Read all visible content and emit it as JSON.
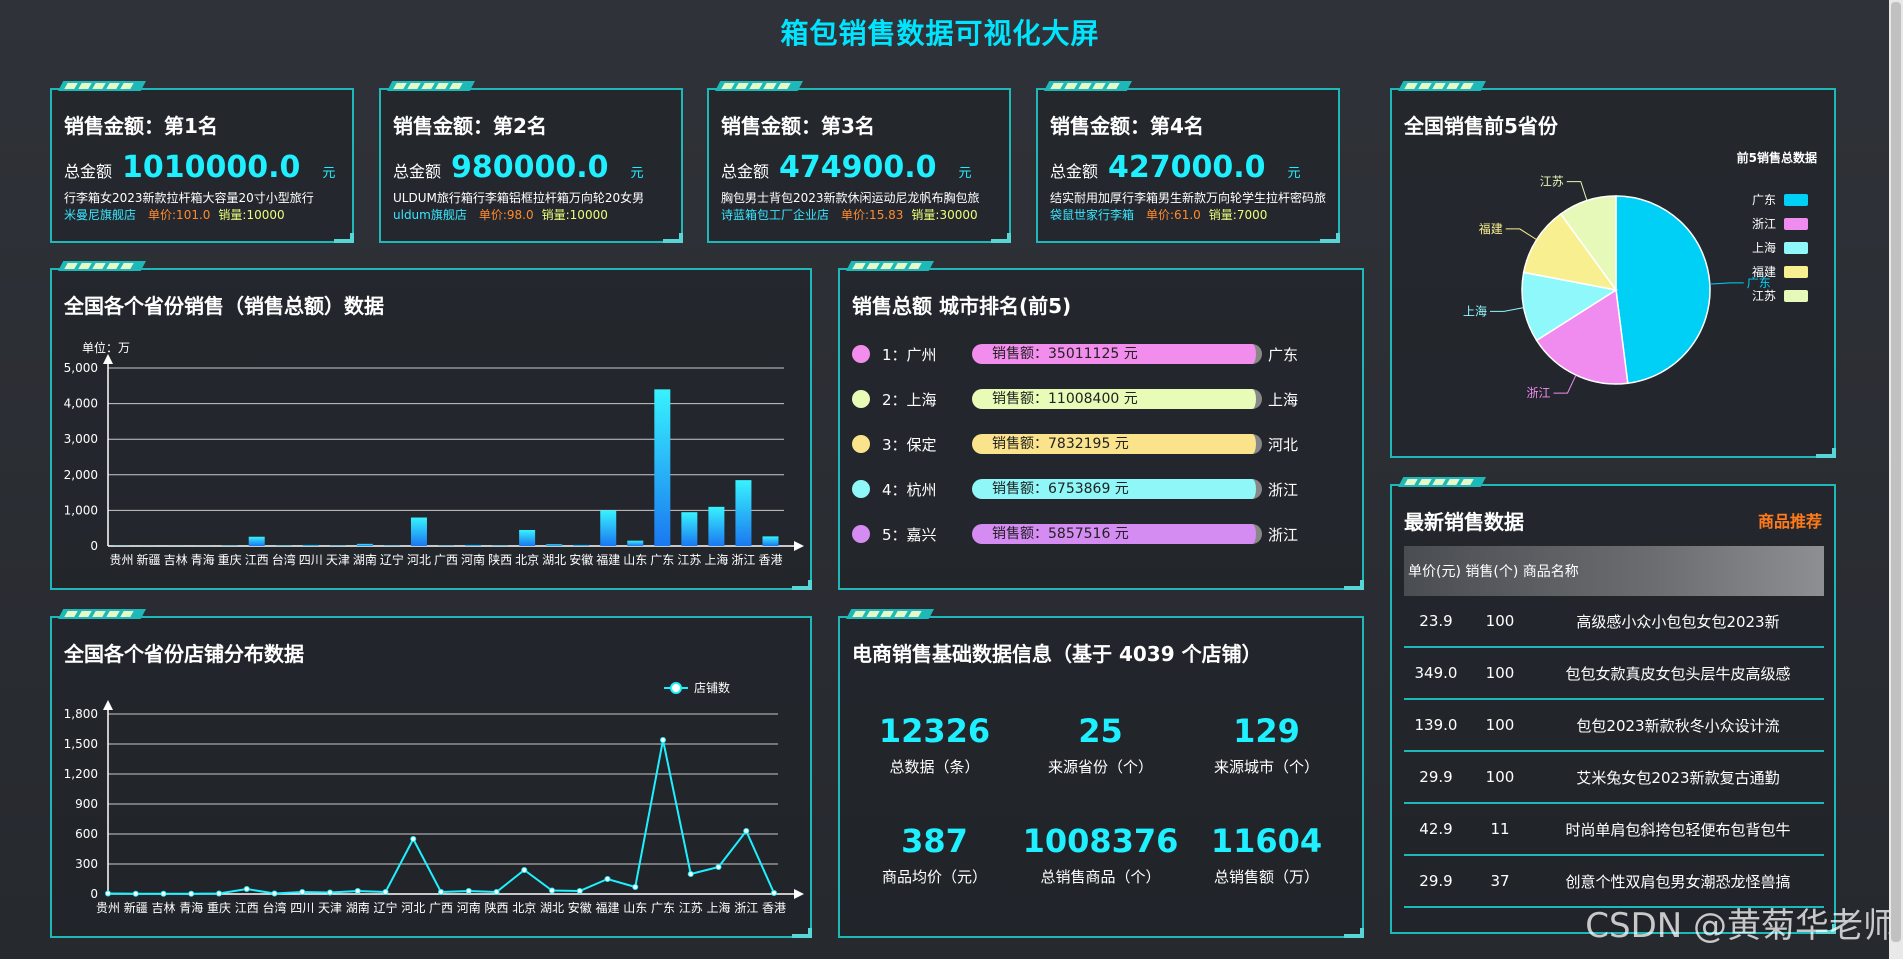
{
  "page_title": "箱包销售数据可视化大屏",
  "cards": [
    {
      "title": "销售金额：第1名",
      "amount_label": "总金额",
      "amount": "1010000.0",
      "unit": "元",
      "product": "行李箱女2023新款拉杆箱大容量20寸小型旅行",
      "shop": "米曼尼旗舰店",
      "price": "单价:101.0",
      "qty": "销量:10000"
    },
    {
      "title": "销售金额：第2名",
      "amount_label": "总金额",
      "amount": "980000.0",
      "unit": "元",
      "product": "ULDUM旅行箱行李箱铝框拉杆箱万向轮20女男",
      "shop": "uldum旗舰店",
      "price": "单价:98.0",
      "qty": "销量:10000"
    },
    {
      "title": "销售金额：第3名",
      "amount_label": "总金额",
      "amount": "474900.0",
      "unit": "元",
      "product": "胸包男士背包2023新款休闲运动尼龙帆布胸包旅",
      "shop": "诗蓝箱包工厂企业店",
      "price": "单价:15.83",
      "qty": "销量:30000"
    },
    {
      "title": "销售金额：第4名",
      "amount_label": "总金额",
      "amount": "427000.0",
      "unit": "元",
      "product": "结实耐用加厚行李箱男生新款万向轮学生拉杆密码旅",
      "shop": "袋鼠世家行李箱",
      "price": "单价:61.0",
      "qty": "销量:7000"
    }
  ],
  "pie_panel": {
    "title": "全国销售前5省份"
  },
  "province_sales_panel": {
    "title": "全国各个省份销售（销售总额）数据",
    "unit": "单位：万"
  },
  "city_rank_panel": {
    "title": "销售总额 城市排名(前5)",
    "rows": [
      {
        "rank": "1：广州",
        "bar": "销售额：35011125 元",
        "prov": "广东",
        "color": "#f28ded"
      },
      {
        "rank": "2：上海",
        "bar": "销售额：11008400 元",
        "prov": "上海",
        "color": "#e8fcb8"
      },
      {
        "rank": "3：保定",
        "bar": "销售额：7832195 元",
        "prov": "河北",
        "color": "#fbe38c"
      },
      {
        "rank": "4：杭州",
        "bar": "销售额：6753869 元",
        "prov": "浙江",
        "color": "#8ff7f7"
      },
      {
        "rank": "5：嘉兴",
        "bar": "销售额：5857516 元",
        "prov": "浙江",
        "color": "#d48bf2"
      }
    ]
  },
  "shop_dist_panel": {
    "title": "全国各个省份店铺分布数据"
  },
  "stats_panel": {
    "title": "电商销售基础数据信息（基于 4039 个店铺）",
    "items": [
      {
        "value": "12326",
        "label": "总数据（条）"
      },
      {
        "value": "25",
        "label": "来源省份（个）"
      },
      {
        "value": "129",
        "label": "来源城市（个）"
      },
      {
        "value": "387",
        "label": "商品均价（元）"
      },
      {
        "value": "1008376",
        "label": "总销售商品（个）"
      },
      {
        "value": "11604",
        "label": "总销售额（万）"
      }
    ]
  },
  "latest_panel": {
    "title": "最新销售数据",
    "recommend": "商品推荐",
    "header": "单价(元)  销售(个)  商品名称",
    "rows": [
      {
        "price": "23.9",
        "qty": "100",
        "name": "高级感小众小包包女包2023新"
      },
      {
        "price": "349.0",
        "qty": "100",
        "name": "包包女款真皮女包头层牛皮高级感"
      },
      {
        "price": "139.0",
        "qty": "100",
        "name": "包包2023新款秋冬小众设计流"
      },
      {
        "price": "29.9",
        "qty": "100",
        "name": "艾米兔女包2023新款复古通勤"
      },
      {
        "price": "42.9",
        "qty": "11",
        "name": "时尚单肩包斜挎包轻便布包背包牛"
      },
      {
        "price": "29.9",
        "qty": "37",
        "name": "创意个性双肩包男女潮恐龙怪兽搞"
      }
    ]
  },
  "watermark": "CSDN @黄菊华老师",
  "chart_data": [
    {
      "type": "pie",
      "title": "前5销售总数据",
      "categories": [
        "广东",
        "浙江",
        "上海",
        "福建",
        "江苏"
      ],
      "values": [
        48,
        18,
        12,
        12,
        10
      ],
      "colors": [
        "#00cff6",
        "#f08cf0",
        "#8ff8fb",
        "#f8ef90",
        "#e6f9b8"
      ],
      "legend": "right"
    },
    {
      "type": "bar",
      "title": "全国各个省份销售（销售总额）数据",
      "ylabel": "单位：万",
      "categories": [
        "贵州",
        "新疆",
        "吉林",
        "青海",
        "重庆",
        "江西",
        "台湾",
        "四川",
        "天津",
        "湖南",
        "辽宁",
        "河北",
        "广西",
        "河南",
        "陕西",
        "北京",
        "湖北",
        "安徽",
        "福建",
        "山东",
        "广东",
        "江苏",
        "上海",
        "浙江",
        "香港"
      ],
      "values": [
        5,
        3,
        3,
        3,
        10,
        260,
        10,
        30,
        10,
        60,
        10,
        800,
        10,
        30,
        10,
        450,
        50,
        30,
        1000,
        150,
        4400,
        950,
        1100,
        1850,
        270
      ],
      "ylim": [
        0,
        5000
      ],
      "yticks": [
        "0",
        "1,000",
        "2,000",
        "3,000",
        "4,000",
        "5,000"
      ],
      "grid": true
    },
    {
      "type": "line",
      "title": "全国各个省份店铺分布数据",
      "series": [
        {
          "name": "店铺数",
          "values": [
            5,
            3,
            3,
            3,
            5,
            50,
            5,
            20,
            15,
            30,
            20,
            550,
            20,
            30,
            20,
            240,
            35,
            30,
            150,
            70,
            1540,
            200,
            270,
            630,
            10
          ]
        }
      ],
      "categories": [
        "贵州",
        "新疆",
        "吉林",
        "青海",
        "重庆",
        "江西",
        "台湾",
        "四川",
        "天津",
        "湖南",
        "辽宁",
        "河北",
        "广西",
        "河南",
        "陕西",
        "北京",
        "湖北",
        "安徽",
        "福建",
        "山东",
        "广东",
        "江苏",
        "上海",
        "浙江",
        "香港"
      ],
      "ylim": [
        0,
        1800
      ],
      "yticks": [
        "0",
        "300",
        "600",
        "900",
        "1,200",
        "1,500",
        "1,800"
      ],
      "grid": true
    }
  ]
}
